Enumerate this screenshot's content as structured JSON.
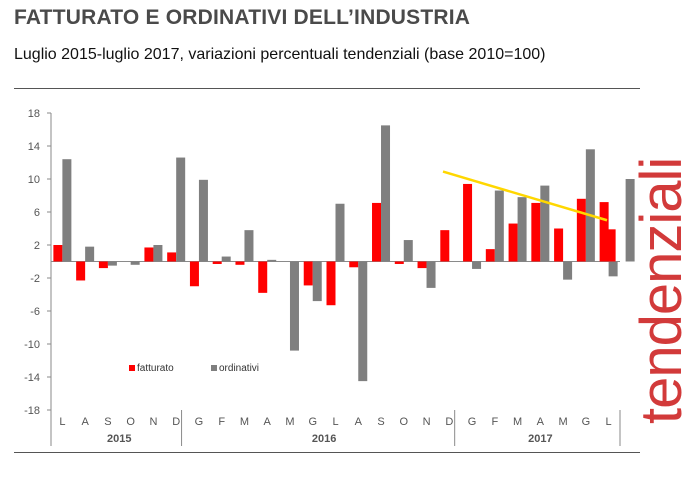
{
  "title": "FATTURATO E ORDINATIVI DELL’INDUSTRIA",
  "subtitle": "Luglio 2015-luglio 2017, variazioni percentuali tendenziali (base 2010=100)",
  "side_label": "tendenziali",
  "chart_data": {
    "type": "bar",
    "categories": [
      "L",
      "A",
      "S",
      "O",
      "N",
      "D",
      "G",
      "F",
      "M",
      "A",
      "M",
      "G",
      "L",
      "A",
      "S",
      "O",
      "N",
      "D",
      "G",
      "F",
      "M",
      "A",
      "M",
      "G",
      "L"
    ],
    "year_groups": [
      {
        "label": "2015",
        "start": 0,
        "end": 5
      },
      {
        "label": "2016",
        "start": 6,
        "end": 17
      },
      {
        "label": "2017",
        "start": 18,
        "end": 24
      }
    ],
    "series": [
      {
        "name": "fatturato",
        "color": "#ff0000",
        "values": [
          2.0,
          -2.3,
          -0.8,
          null,
          1.7,
          1.1,
          -3.0,
          -0.3,
          -0.4,
          -3.8,
          null,
          -2.9,
          -5.3,
          -0.7,
          7.1,
          -0.3,
          -0.8,
          3.8,
          9.4,
          1.5,
          4.6,
          7.1,
          4.0,
          7.6,
          7.2
        ]
      },
      {
        "name": "ordinativi",
        "color": "#7f7f7f",
        "values": [
          12.4,
          1.8,
          -0.5,
          -0.4,
          2.0,
          12.6,
          9.9,
          0.6,
          3.8,
          0.2,
          -10.8,
          -4.8,
          7.0,
          -14.5,
          16.5,
          2.6,
          -3.2,
          null,
          -0.9,
          8.6,
          7.8,
          9.2,
          -2.2,
          13.6,
          -1.8
        ]
      }
    ],
    "extra": {
      "fatturato_last": 3.9,
      "ordinativi_last": 10.0
    },
    "trendline": {
      "color": "#ffd700",
      "from": 10.9,
      "to": 5.0
    },
    "ylim": [
      -18,
      18
    ],
    "yticks": [
      18,
      14,
      10,
      6,
      2,
      -2,
      -6,
      -10,
      -14,
      -18
    ],
    "grid": false,
    "legend_position": "lower-left"
  },
  "colors": {
    "title": "#4a4a4a",
    "axis": "#555555",
    "side_label": "#d23a3a"
  }
}
